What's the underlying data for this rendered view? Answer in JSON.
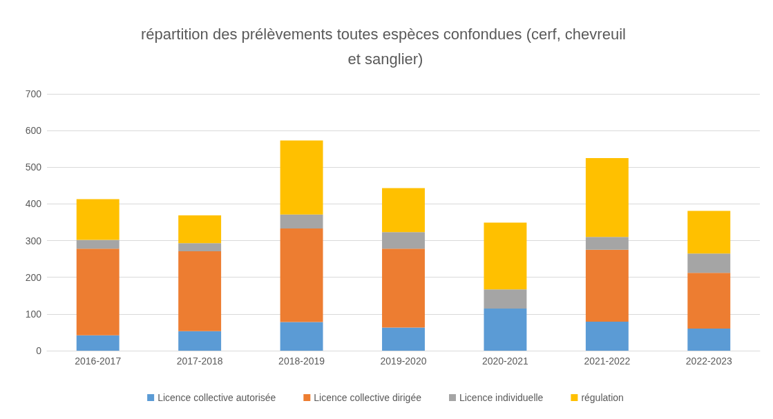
{
  "chart_data": {
    "type": "bar",
    "stacked": true,
    "title": "répartition des prélèvements toutes espèces confondues (cerf, chevreuil et sanglier)",
    "categories": [
      "2016-2017",
      "2017-2018",
      "2018-2019",
      "2019-2020",
      "2020-2021",
      "2021-2022",
      "2022-2023"
    ],
    "series": [
      {
        "name": "Licence collective autorisée",
        "color": "#5b9bd5",
        "values": [
          42,
          53,
          78,
          63,
          115,
          79,
          60
        ]
      },
      {
        "name": "Licence collective dirigée",
        "color": "#ed7d31",
        "values": [
          236,
          218,
          255,
          215,
          0,
          196,
          152
        ]
      },
      {
        "name": "Licence individuelle",
        "color": "#a5a5a5",
        "values": [
          24,
          22,
          38,
          45,
          52,
          35,
          53
        ]
      },
      {
        "name": "régulation",
        "color": "#ffc000",
        "values": [
          111,
          76,
          202,
          120,
          182,
          215,
          116
        ]
      }
    ],
    "ylim": [
      0,
      700
    ],
    "yticks": [
      0,
      100,
      200,
      300,
      400,
      500,
      600,
      700
    ],
    "grid": "y",
    "legend": "bottom"
  }
}
